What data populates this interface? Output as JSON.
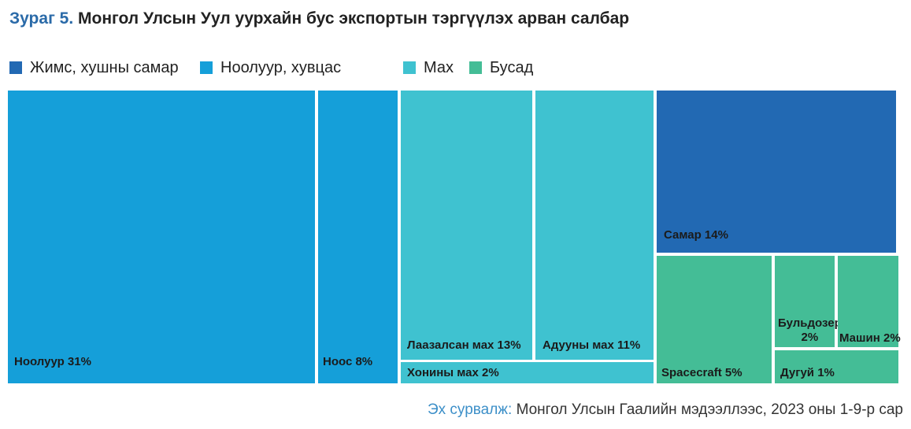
{
  "title": {
    "prefix": "Зураг 5.",
    "text": "Монгол Улсын Уул уурхайн бус экспортын тэргүүлэх арван салбар"
  },
  "legend": [
    {
      "name": "Жимс, хушны самар",
      "color": "#2269b3",
      "icon": "square-swatch"
    },
    {
      "name": "Ноолуур, хувцас",
      "color": "#159fd9",
      "icon": "square-swatch"
    },
    {
      "name": "Мах",
      "color": "#3fc2d0",
      "icon": "square-swatch"
    },
    {
      "name": "Бусад",
      "color": "#44bd96",
      "icon": "square-swatch"
    }
  ],
  "chart_data": {
    "type": "treemap",
    "unit": "%",
    "items": [
      {
        "label": "Ноолуур 31%",
        "name": "Ноолуур",
        "value": 31,
        "group": "Ноолуур, хувцас",
        "color": "#159fd9"
      },
      {
        "label": "Ноос 8%",
        "name": "Ноос",
        "value": 8,
        "group": "Ноолуур, хувцас",
        "color": "#159fd9"
      },
      {
        "label": "Лаазалсан мах 13%",
        "name": "Лаазалсан мах",
        "value": 13,
        "group": "Мах",
        "color": "#3fc2d0"
      },
      {
        "label": "Адууны мах 11%",
        "name": "Адууны мах",
        "value": 11,
        "group": "Мах",
        "color": "#3fc2d0"
      },
      {
        "label": "Хонины мах 2%",
        "name": "Хонины мах",
        "value": 2,
        "group": "Мах",
        "color": "#3fc2d0"
      },
      {
        "label": "Самар 14%",
        "name": "Самар",
        "value": 14,
        "group": "Жимс, хушны самар",
        "color": "#2269b3"
      },
      {
        "label": "Spacecraft 5%",
        "name": "Spacecraft",
        "value": 5,
        "group": "Бусад",
        "color": "#44bd96"
      },
      {
        "label_lines": [
          "Бульдозер",
          "2%"
        ],
        "name": "Бульдозер",
        "value": 2,
        "group": "Бусад",
        "color": "#44bd96"
      },
      {
        "label": "Машин 2%",
        "name": "Машин",
        "value": 2,
        "group": "Бусад",
        "color": "#44bd96"
      },
      {
        "label": "Дугуй 1%",
        "name": "Дугуй",
        "value": 1,
        "group": "Бусад",
        "color": "#44bd96"
      }
    ]
  },
  "source": {
    "label": "Эх сурвалж:",
    "text": "Монгол Улсын Гаалийн мэдээллээс, 2023 оны 1-9-р сар"
  }
}
